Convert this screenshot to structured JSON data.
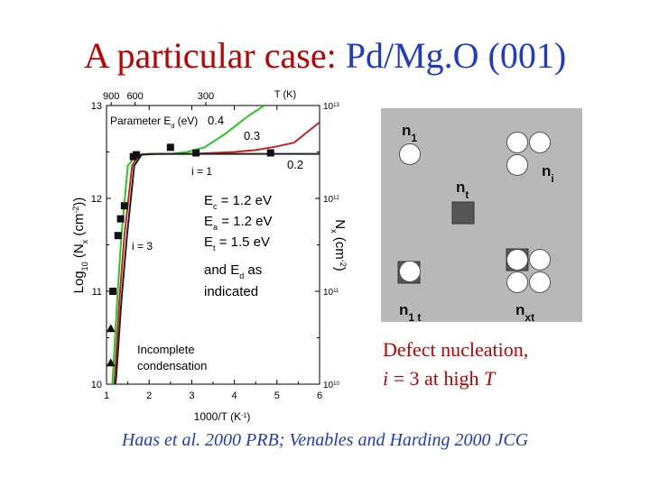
{
  "slide": {
    "title_prefix": "A particular case: ",
    "title_highlight": "Pd/Mg.O (001)",
    "caption_line1": "Defect nucleation,",
    "caption_i": "i",
    "caption_rest": " = 3 at high ",
    "caption_T": "T",
    "reference": "Haas et al. 2000 PRB; Venables and Harding 2000 JCG"
  },
  "chart_data": {
    "type": "line",
    "xlabel": "1000/T (K-1)",
    "ylabel_left": "Log10 (Nx (cm-2))",
    "ylabel_right": "Nx (cm-2)",
    "top_axis_label": "T (K)",
    "xlim": [
      1,
      6
    ],
    "ylim": [
      10,
      13
    ],
    "x_ticks": [
      "1",
      "2",
      "3",
      "4",
      "5",
      "6"
    ],
    "y_ticks_left": [
      "10",
      "11",
      "12",
      "13"
    ],
    "y_ticks_right": [
      "10^10",
      "10^11",
      "10^12",
      "10^13"
    ],
    "top_ticks": [
      {
        "label": "900",
        "x": 1.11
      },
      {
        "label": "600",
        "x": 1.67
      },
      {
        "label": "300",
        "x": 3.33
      }
    ],
    "legend_title": "Parameter Ed (eV)",
    "series": [
      {
        "name": "0.4",
        "color": "#22cc22",
        "points": [
          [
            1.0,
            9.0
          ],
          [
            1.15,
            10.1
          ],
          [
            1.25,
            10.9
          ],
          [
            1.35,
            11.6
          ],
          [
            1.5,
            12.35
          ],
          [
            1.7,
            12.47
          ],
          [
            2.0,
            12.48
          ],
          [
            2.5,
            12.48
          ],
          [
            2.9,
            12.5
          ],
          [
            3.3,
            12.55
          ],
          [
            3.8,
            12.7
          ],
          [
            4.3,
            12.88
          ],
          [
            4.7,
            13.0
          ]
        ]
      },
      {
        "name": "0.3",
        "color": "#cc2222",
        "points": [
          [
            1.0,
            9.0
          ],
          [
            1.2,
            10.1
          ],
          [
            1.3,
            10.9
          ],
          [
            1.42,
            11.6
          ],
          [
            1.6,
            12.35
          ],
          [
            1.75,
            12.47
          ],
          [
            2.0,
            12.48
          ],
          [
            3.0,
            12.48
          ],
          [
            4.0,
            12.5
          ],
          [
            4.5,
            12.52
          ],
          [
            5.0,
            12.56
          ],
          [
            5.4,
            12.6
          ],
          [
            6.0,
            12.82
          ]
        ]
      },
      {
        "name": "0.2",
        "color": "#222222",
        "points": [
          [
            1.0,
            9.0
          ],
          [
            1.23,
            10.1
          ],
          [
            1.35,
            10.9
          ],
          [
            1.48,
            11.6
          ],
          [
            1.65,
            12.35
          ],
          [
            1.82,
            12.47
          ],
          [
            2.2,
            12.48
          ],
          [
            6.0,
            12.48
          ]
        ]
      }
    ],
    "squares": [
      [
        1.15,
        11.0
      ],
      [
        1.27,
        11.6
      ],
      [
        1.33,
        11.78
      ],
      [
        1.42,
        11.92
      ],
      [
        1.63,
        12.45
      ],
      [
        1.7,
        12.47
      ],
      [
        2.5,
        12.55
      ],
      [
        3.1,
        12.49
      ],
      [
        4.85,
        12.49
      ]
    ],
    "triangles": [
      [
        1.1,
        10.6
      ],
      [
        1.1,
        10.23
      ]
    ],
    "annotations": {
      "i1": "i = 1",
      "i3": "i = 3",
      "ec": "Ec = 1.2 eV",
      "ea": "Ea = 1.2 eV",
      "et": "Et = 1.5 eV",
      "and_ed": "and Ed as",
      "indicated": "indicated",
      "incomplete": "Incomplete",
      "condensation": "condensation"
    }
  },
  "diagram": {
    "background": "#b8b8b8",
    "label_n1": "n1",
    "label_ni": "ni",
    "label_nt": "nt",
    "label_n1t": "n1 t",
    "label_nxt": "nxt"
  }
}
